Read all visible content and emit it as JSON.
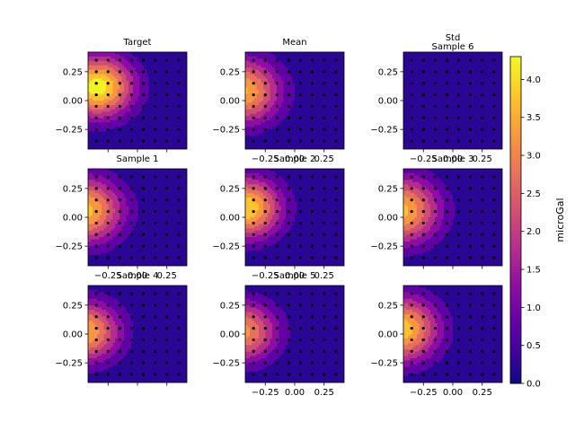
{
  "chart_data": {
    "type": "heatmap",
    "colormap": "plasma",
    "panels": [
      {
        "title": "Target",
        "center": [
          -0.34,
          0.12
        ],
        "peak": 4.3,
        "spread": 0.3,
        "x_tick_labels": []
      },
      {
        "title": "Mean",
        "center": [
          -0.45,
          0.08
        ],
        "peak": 3.6,
        "spread": 0.32,
        "x_tick_labels": [
          "−0.25",
          "0.00",
          "0.25"
        ]
      },
      {
        "title": "Std",
        "center": [
          0.0,
          0.0
        ],
        "peak": 0.12,
        "spread": 1.0,
        "x_tick_labels": []
      },
      {
        "title": "Sample 6",
        "center": [
          0.0,
          0.0
        ],
        "peak": 0.0,
        "spread": 1.0,
        "x_tick_labels": [
          "−0.25",
          "0.00",
          "0.25"
        ],
        "title_only": true
      },
      {
        "title": "Sample 1",
        "center": [
          -0.45,
          0.06
        ],
        "peak": 3.7,
        "spread": 0.32,
        "x_tick_labels": [
          "−0.25",
          "0.00",
          "0.25"
        ]
      },
      {
        "title": "Sample 2",
        "center": [
          -0.42,
          0.08
        ],
        "peak": 4.0,
        "spread": 0.3,
        "x_tick_labels": [
          "−0.25",
          "0.00",
          "0.25"
        ]
      },
      {
        "title": "Sample 3",
        "center": [
          -0.45,
          0.06
        ],
        "peak": 3.7,
        "spread": 0.33,
        "x_tick_labels": []
      },
      {
        "title": "Sample 4",
        "center": [
          -0.45,
          0.02
        ],
        "peak": 3.5,
        "spread": 0.3,
        "x_tick_labels": []
      },
      {
        "title": "Sample 5",
        "center": [
          -0.45,
          0.02
        ],
        "peak": 3.2,
        "spread": 0.3,
        "x_tick_labels": [
          "−0.25",
          "0.00",
          "0.25"
        ]
      },
      {
        "title": "",
        "center": [
          -0.45,
          0.04
        ],
        "peak": 3.9,
        "spread": 0.32,
        "x_tick_labels": [
          "−0.25",
          "0.00",
          "0.25"
        ]
      }
    ],
    "xlim": [
      -0.42,
      0.42
    ],
    "ylim": [
      -0.42,
      0.42
    ],
    "x_ticks": [
      -0.25,
      0.0,
      0.25
    ],
    "y_ticks": [
      0.25,
      0.0,
      -0.25
    ],
    "y_tick_labels": [
      "0.25",
      "0.00",
      "−0.25"
    ],
    "station_grid": [
      -0.35,
      -0.25,
      -0.15,
      -0.05,
      0.05,
      0.15,
      0.25,
      0.35
    ],
    "colorbar": {
      "label": "microGal",
      "min": 0.0,
      "max": 4.3,
      "ticks": [
        0.0,
        0.5,
        1.0,
        1.5,
        2.0,
        2.5,
        3.0,
        3.5,
        4.0
      ],
      "tick_labels": [
        "0.0",
        "0.5",
        "1.0",
        "1.5",
        "2.0",
        "2.5",
        "3.0",
        "3.5",
        "4.0"
      ]
    }
  }
}
